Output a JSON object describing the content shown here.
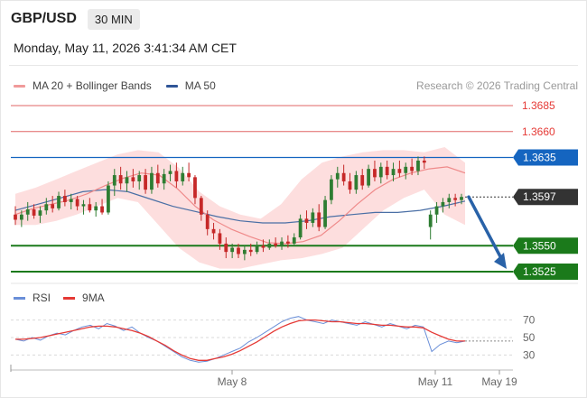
{
  "header": {
    "symbol": "GBP/USD",
    "timeframe": "30 MIN",
    "datetime": "Monday, May 11, 2026 3:41:34 AM CET"
  },
  "legend": {
    "ma20_label": "MA 20 + Bollinger Bands",
    "ma50_label": "MA 50",
    "credit": "Research © 2026 Trading Central"
  },
  "rsi_legend": {
    "rsi_label": "RSI",
    "ma9_label": "9MA"
  },
  "colors": {
    "up": "#2e7d32",
    "down": "#c62828",
    "band": "#fdd8d8",
    "ma20": "#ef8a8a",
    "ma50": "#4a6fa5",
    "resistance": "#e06666",
    "pivot": "#1565c0",
    "support": "#1b7a1b",
    "last": "#333333",
    "arrow": "#2962a8",
    "rsi": "#6a8fd8",
    "ma9": "#e53935"
  },
  "chart_data": {
    "type": "candlestick",
    "x_ticks": [
      "May 8",
      "May 11",
      "May 19"
    ],
    "ylim": [
      1.351,
      1.37
    ],
    "candles": [
      [
        1.358,
        1.3588,
        1.357,
        1.3575
      ],
      [
        1.3575,
        1.3584,
        1.3568,
        1.358
      ],
      [
        1.358,
        1.3592,
        1.3574,
        1.3585
      ],
      [
        1.3585,
        1.359,
        1.3576,
        1.3579
      ],
      [
        1.3579,
        1.3588,
        1.3572,
        1.3584
      ],
      [
        1.3584,
        1.3596,
        1.358,
        1.359
      ],
      [
        1.359,
        1.3598,
        1.3582,
        1.3586
      ],
      [
        1.3586,
        1.3602,
        1.3584,
        1.3598
      ],
      [
        1.3598,
        1.3604,
        1.3588,
        1.3592
      ],
      [
        1.3592,
        1.36,
        1.3585,
        1.3595
      ],
      [
        1.3595,
        1.3598,
        1.3584,
        1.3588
      ],
      [
        1.3588,
        1.3594,
        1.358,
        1.359
      ],
      [
        1.359,
        1.3596,
        1.3582,
        1.3584
      ],
      [
        1.3584,
        1.3592,
        1.3578,
        1.3588
      ],
      [
        1.3588,
        1.3595,
        1.358,
        1.3582
      ],
      [
        1.3582,
        1.3612,
        1.358,
        1.3608
      ],
      [
        1.3608,
        1.3624,
        1.3598,
        1.3618
      ],
      [
        1.3618,
        1.3626,
        1.3604,
        1.361
      ],
      [
        1.361,
        1.3622,
        1.3602,
        1.3616
      ],
      [
        1.3616,
        1.3624,
        1.3606,
        1.3612
      ],
      [
        1.3612,
        1.3622,
        1.3604,
        1.3618
      ],
      [
        1.3618,
        1.3624,
        1.36,
        1.3604
      ],
      [
        1.3604,
        1.3626,
        1.36,
        1.362
      ],
      [
        1.362,
        1.3628,
        1.3606,
        1.361
      ],
      [
        1.361,
        1.3624,
        1.3604,
        1.3619
      ],
      [
        1.3619,
        1.3628,
        1.3612,
        1.3622
      ],
      [
        1.3622,
        1.363,
        1.3606,
        1.3612
      ],
      [
        1.3612,
        1.3626,
        1.3608,
        1.362
      ],
      [
        1.362,
        1.363,
        1.3612,
        1.3616
      ],
      [
        1.3616,
        1.3618,
        1.359,
        1.3596
      ],
      [
        1.3596,
        1.3598,
        1.3574,
        1.358
      ],
      [
        1.358,
        1.3584,
        1.356,
        1.3566
      ],
      [
        1.3566,
        1.3572,
        1.3556,
        1.3562
      ],
      [
        1.3562,
        1.3566,
        1.3546,
        1.3552
      ],
      [
        1.3552,
        1.3558,
        1.3538,
        1.3544
      ],
      [
        1.3544,
        1.3552,
        1.3538,
        1.3548
      ],
      [
        1.3548,
        1.3552,
        1.3538,
        1.3542
      ],
      [
        1.3542,
        1.355,
        1.3536,
        1.3546
      ],
      [
        1.3546,
        1.3552,
        1.354,
        1.3544
      ],
      [
        1.3544,
        1.3554,
        1.3542,
        1.355
      ],
      [
        1.355,
        1.3556,
        1.3544,
        1.3548
      ],
      [
        1.3548,
        1.3556,
        1.3546,
        1.3552
      ],
      [
        1.3552,
        1.3558,
        1.3548,
        1.355
      ],
      [
        1.355,
        1.3558,
        1.3546,
        1.3554
      ],
      [
        1.3554,
        1.356,
        1.3548,
        1.3552
      ],
      [
        1.3552,
        1.3562,
        1.355,
        1.3558
      ],
      [
        1.3558,
        1.358,
        1.3556,
        1.3576
      ],
      [
        1.3576,
        1.3584,
        1.3566,
        1.3572
      ],
      [
        1.3572,
        1.3586,
        1.3568,
        1.3582
      ],
      [
        1.3582,
        1.359,
        1.3564,
        1.3568
      ],
      [
        1.3568,
        1.3598,
        1.3566,
        1.3594
      ],
      [
        1.3594,
        1.3618,
        1.359,
        1.3614
      ],
      [
        1.3614,
        1.3626,
        1.3606,
        1.362
      ],
      [
        1.362,
        1.3628,
        1.3608,
        1.3612
      ],
      [
        1.3612,
        1.362,
        1.36,
        1.3604
      ],
      [
        1.3604,
        1.3622,
        1.36,
        1.3618
      ],
      [
        1.3618,
        1.3624,
        1.3604,
        1.3608
      ],
      [
        1.3608,
        1.3628,
        1.3606,
        1.3624
      ],
      [
        1.3624,
        1.3632,
        1.3612,
        1.3616
      ],
      [
        1.3616,
        1.363,
        1.361,
        1.3626
      ],
      [
        1.3626,
        1.3632,
        1.3614,
        1.3618
      ],
      [
        1.3618,
        1.363,
        1.3612,
        1.3624
      ],
      [
        1.3624,
        1.3632,
        1.3616,
        1.362
      ],
      [
        1.362,
        1.363,
        1.3614,
        1.3626
      ],
      [
        1.3626,
        1.3634,
        1.3618,
        1.3622
      ],
      [
        1.3622,
        1.3636,
        1.3618,
        1.3632
      ],
      [
        1.3632,
        1.3636,
        1.3624,
        1.363
      ],
      [
        1.3568,
        1.3584,
        1.3556,
        1.358
      ],
      [
        1.358,
        1.3592,
        1.3572,
        1.3588
      ],
      [
        1.3588,
        1.3596,
        1.3582,
        1.3592
      ],
      [
        1.3592,
        1.36,
        1.3586,
        1.3596
      ],
      [
        1.3596,
        1.36,
        1.3588,
        1.3594
      ],
      [
        1.3594,
        1.36,
        1.359,
        1.3597
      ]
    ],
    "ma20": [
      1.358,
      1.3586,
      1.359,
      1.3594,
      1.36,
      1.3608,
      1.3615,
      1.362,
      1.3618,
      1.3605,
      1.3588,
      1.3575,
      1.3566,
      1.3559,
      1.3553,
      1.3552,
      1.3554,
      1.356,
      1.3574,
      1.359,
      1.3604,
      1.3614,
      1.362,
      1.3624,
      1.3626,
      1.362
    ],
    "ma50": [
      1.3584,
      1.359,
      1.3596,
      1.3602,
      1.3604,
      1.3602,
      1.3595,
      1.3588,
      1.3583,
      1.3578,
      1.3574,
      1.3572,
      1.3572,
      1.3574,
      1.3578,
      1.358,
      1.3582,
      1.3582,
      1.3584,
      1.3588,
      1.3593
    ],
    "bb_upper": [
      1.36,
      1.3606,
      1.3614,
      1.3622,
      1.363,
      1.3638,
      1.3642,
      1.364,
      1.3625,
      1.3602,
      1.3588,
      1.358,
      1.3576,
      1.359,
      1.3614,
      1.363,
      1.3636,
      1.364,
      1.3642,
      1.3642,
      1.364,
      1.3645,
      1.363
    ],
    "bb_lower": [
      1.357,
      1.357,
      1.3574,
      1.358,
      1.3588,
      1.3596,
      1.3592,
      1.357,
      1.3548,
      1.3534,
      1.3528,
      1.3528,
      1.3532,
      1.3536,
      1.3538,
      1.3542,
      1.3548,
      1.3566,
      1.3584,
      1.3596,
      1.3604,
      1.358,
      1.357
    ],
    "levels": {
      "resistance_2": "1.3685",
      "resistance_1": "1.3660",
      "pivot": "1.3635",
      "last": "1.3597",
      "support_1": "1.3550",
      "support_2": "1.3525"
    },
    "rsi": {
      "ticks": [
        "70",
        "50",
        "30"
      ],
      "ylim": [
        15,
        85
      ],
      "rsi": [
        48,
        46,
        50,
        47,
        52,
        55,
        53,
        58,
        62,
        64,
        60,
        66,
        63,
        58,
        62,
        55,
        50,
        46,
        40,
        34,
        28,
        24,
        22,
        23,
        26,
        30,
        34,
        38,
        45,
        50,
        56,
        62,
        68,
        72,
        74,
        70,
        68,
        66,
        70,
        68,
        66,
        64,
        68,
        65,
        62,
        66,
        63,
        60,
        64,
        62,
        34,
        42,
        46,
        44,
        46
      ],
      "ma9": [
        48,
        48,
        49,
        50,
        52,
        54,
        56,
        58,
        60,
        62,
        63,
        63,
        62,
        60,
        58,
        55,
        51,
        46,
        41,
        35,
        30,
        26,
        24,
        24,
        26,
        28,
        31,
        35,
        40,
        45,
        51,
        57,
        62,
        66,
        69,
        70,
        70,
        69,
        68,
        68,
        67,
        66,
        66,
        65,
        64,
        64,
        63,
        62,
        62,
        61,
        56,
        52,
        48,
        46,
        46
      ]
    }
  }
}
